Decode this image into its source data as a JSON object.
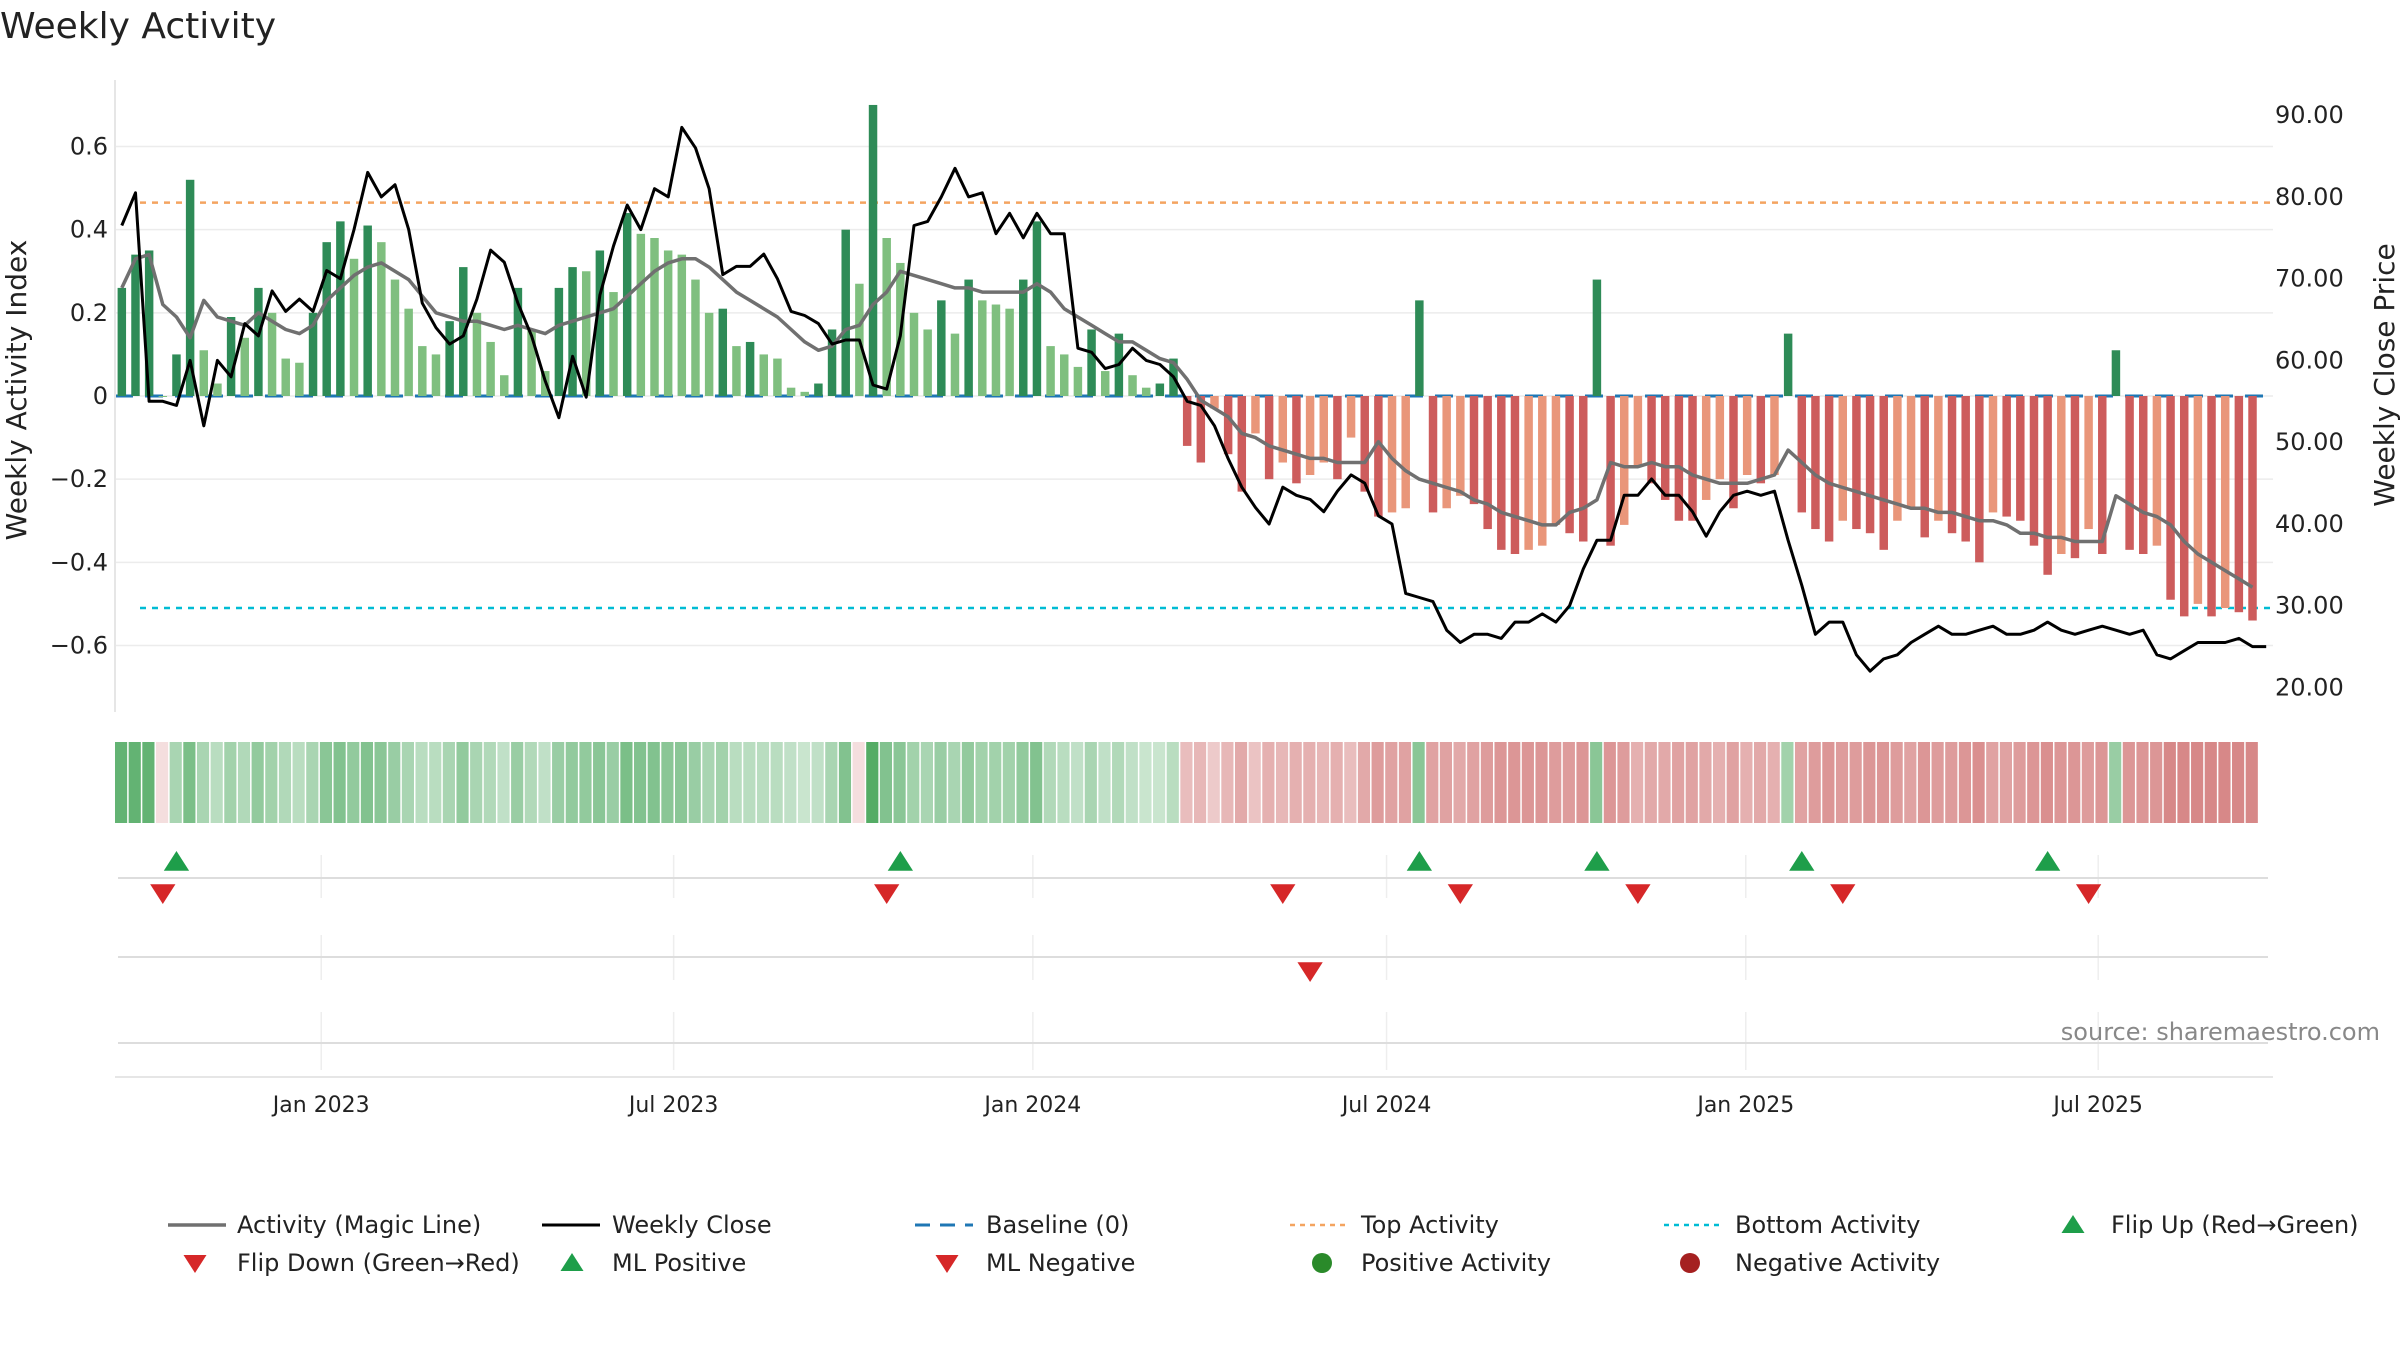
{
  "chart_data": {
    "type": "bar",
    "title": "Weekly Activity",
    "ylabel": "Weekly Activity Index",
    "y2label": "Weekly Close Price",
    "ylim": [
      -0.76,
      0.76
    ],
    "y2lim": [
      17.0,
      94.3
    ],
    "yticks": [
      0.6,
      0.4,
      0.2,
      0,
      -0.2,
      -0.4,
      -0.6
    ],
    "ytick_labels": [
      "0.6",
      "0.4",
      "0.2",
      "0",
      "−0.2",
      "−0.4",
      "−0.6"
    ],
    "y2ticks": [
      90,
      80,
      70,
      60,
      50,
      40,
      30,
      20
    ],
    "y2tick_labels": [
      "90.00",
      "80.00",
      "70.00",
      "60.00",
      "50.00",
      "40.00",
      "30.00",
      "20.00"
    ],
    "x_range_weeks": [
      0,
      157
    ],
    "xticks": [
      {
        "week": 14.6,
        "label": "Jan 2023"
      },
      {
        "week": 40.4,
        "label": "Jul 2023"
      },
      {
        "week": 66.7,
        "label": "Jan 2024"
      },
      {
        "week": 92.6,
        "label": "Jul 2024"
      },
      {
        "week": 118.9,
        "label": "Jan 2025"
      },
      {
        "week": 144.7,
        "label": "Jul 2025"
      }
    ],
    "top_activity": 0.465,
    "bottom_activity": -0.51,
    "activity": [
      0.26,
      0.34,
      0.35,
      0,
      0.1,
      0.52,
      0.11,
      0.03,
      0.19,
      0.14,
      0.26,
      0.2,
      0.09,
      0.08,
      0.2,
      0.37,
      0.42,
      0.33,
      0.41,
      0.37,
      0.28,
      0.21,
      0.12,
      0.1,
      0.18,
      0.31,
      0.2,
      0.13,
      0.05,
      0.26,
      0.16,
      0.06,
      0.26,
      0.31,
      0.3,
      0.35,
      0.25,
      0.44,
      0.39,
      0.38,
      0.35,
      0.34,
      0.28,
      0.2,
      0.21,
      0.12,
      0.13,
      0.1,
      0.09,
      0.02,
      0.01,
      0.03,
      0.16,
      0.4,
      0.27,
      0.7,
      0.38,
      0.32,
      0.2,
      0.16,
      0.23,
      0.15,
      0.28,
      0.23,
      0.22,
      0.21,
      0.28,
      0.42,
      0.12,
      0.1,
      0.07,
      0.16,
      0.06,
      0.15,
      0.05,
      0.02,
      0.03,
      0.09,
      -0.12,
      -0.16,
      -0.03,
      -0.14,
      -0.23,
      -0.09,
      -0.2,
      -0.16,
      -0.21,
      -0.19,
      -0.16,
      -0.2,
      -0.1,
      -0.23,
      -0.29,
      -0.28,
      -0.27,
      0.23,
      -0.28,
      -0.27,
      -0.24,
      -0.26,
      -0.32,
      -0.37,
      -0.38,
      -0.37,
      -0.36,
      -0.31,
      -0.33,
      -0.35,
      0.28,
      -0.36,
      -0.31,
      -0.17,
      -0.21,
      -0.25,
      -0.3,
      -0.3,
      -0.25,
      -0.2,
      -0.27,
      -0.19,
      -0.21,
      -0.19,
      0.15,
      -0.28,
      -0.32,
      -0.35,
      -0.3,
      -0.32,
      -0.33,
      -0.37,
      -0.3,
      -0.27,
      -0.34,
      -0.3,
      -0.33,
      -0.35,
      -0.4,
      -0.28,
      -0.29,
      -0.3,
      -0.36,
      -0.43,
      -0.38,
      -0.39,
      -0.32,
      -0.38,
      0.11,
      -0.37,
      -0.38,
      -0.36,
      -0.49,
      -0.53,
      -0.5,
      -0.53,
      -0.51,
      -0.52,
      -0.54
    ],
    "magic_line": [
      0.26,
      0.33,
      0.34,
      0.22,
      0.19,
      0.14,
      0.23,
      0.19,
      0.18,
      0.17,
      0.2,
      0.18,
      0.16,
      0.15,
      0.17,
      0.23,
      0.26,
      0.29,
      0.31,
      0.32,
      0.3,
      0.28,
      0.24,
      0.2,
      0.19,
      0.18,
      0.18,
      0.17,
      0.16,
      0.17,
      0.16,
      0.15,
      0.17,
      0.18,
      0.19,
      0.2,
      0.21,
      0.24,
      0.27,
      0.3,
      0.32,
      0.33,
      0.33,
      0.31,
      0.28,
      0.25,
      0.23,
      0.21,
      0.19,
      0.16,
      0.13,
      0.11,
      0.12,
      0.16,
      0.17,
      0.22,
      0.25,
      0.3,
      0.29,
      0.28,
      0.27,
      0.26,
      0.26,
      0.25,
      0.25,
      0.25,
      0.25,
      0.27,
      0.25,
      0.21,
      0.19,
      0.17,
      0.15,
      0.13,
      0.13,
      0.11,
      0.09,
      0.08,
      0.04,
      -0.01,
      -0.03,
      -0.05,
      -0.09,
      -0.1,
      -0.12,
      -0.13,
      -0.14,
      -0.15,
      -0.15,
      -0.16,
      -0.16,
      -0.16,
      -0.11,
      -0.15,
      -0.18,
      -0.2,
      -0.21,
      -0.22,
      -0.23,
      -0.25,
      -0.26,
      -0.28,
      -0.29,
      -0.3,
      -0.31,
      -0.31,
      -0.28,
      -0.27,
      -0.25,
      -0.16,
      -0.17,
      -0.17,
      -0.16,
      -0.17,
      -0.17,
      -0.19,
      -0.2,
      -0.21,
      -0.21,
      -0.21,
      -0.2,
      -0.19,
      -0.13,
      -0.16,
      -0.19,
      -0.21,
      -0.22,
      -0.23,
      -0.24,
      -0.25,
      -0.26,
      -0.27,
      -0.27,
      -0.28,
      -0.28,
      -0.29,
      -0.3,
      -0.3,
      -0.31,
      -0.33,
      -0.33,
      -0.34,
      -0.34,
      -0.35,
      -0.35,
      -0.35,
      -0.24,
      -0.26,
      -0.28,
      -0.29,
      -0.31,
      -0.35,
      -0.38,
      -0.4,
      -0.42,
      -0.44,
      -0.46
    ],
    "weekly_close": [
      76.5,
      80.5,
      55.0,
      55.0,
      54.5,
      60.0,
      52.0,
      60.0,
      58.0,
      64.5,
      63.0,
      68.5,
      66.0,
      67.5,
      66.0,
      71.0,
      70.0,
      76.0,
      83.0,
      80.0,
      81.5,
      76.0,
      67.0,
      64.0,
      62.0,
      63.0,
      67.5,
      73.5,
      72.0,
      67.0,
      63.0,
      57.5,
      53.0,
      60.5,
      55.5,
      68.0,
      74.0,
      79.0,
      76.0,
      81.0,
      80.0,
      88.5,
      86.0,
      81.0,
      70.5,
      71.5,
      71.5,
      73.0,
      70.0,
      66.0,
      65.5,
      64.5,
      62.0,
      62.5,
      62.5,
      57.0,
      56.5,
      63.0,
      76.5,
      77.0,
      80.0,
      83.5,
      80.0,
      80.5,
      75.5,
      78.0,
      75.0,
      78.0,
      75.5,
      75.5,
      61.5,
      61.0,
      59.0,
      59.5,
      61.5,
      60.0,
      59.5,
      58.0,
      55.0,
      54.5,
      52.0,
      48.0,
      44.5,
      42.0,
      40.0,
      44.5,
      43.5,
      43.0,
      41.5,
      44.0,
      46.0,
      45.0,
      41.0,
      40.0,
      31.5,
      31.0,
      30.5,
      27.0,
      25.5,
      26.5,
      26.5,
      26.0,
      28.0,
      28.0,
      29.0,
      28.0,
      30.0,
      34.5,
      38.0,
      38.0,
      43.5,
      43.5,
      45.5,
      43.5,
      43.5,
      41.5,
      38.5,
      41.5,
      43.5,
      44.0,
      43.5,
      44.0,
      38.0,
      32.5,
      26.5,
      28.0,
      28.0,
      24.0,
      22.0,
      23.5,
      24.0,
      25.5,
      26.5,
      27.5,
      26.5,
      26.5,
      27.0,
      27.5,
      26.5,
      26.5,
      27.0,
      28.0,
      27.0,
      26.5,
      27.0,
      27.5,
      27.0,
      26.5,
      27.0,
      24.0,
      23.5,
      24.5,
      25.5,
      25.5,
      25.5,
      26.0,
      25.0,
      25.0
    ],
    "strip_color_strength": [
      0.75,
      0.75,
      0.75,
      0.2,
      0.3,
      0.6,
      0.3,
      0.2,
      0.35,
      0.25,
      0.45,
      0.35,
      0.25,
      0.2,
      0.3,
      0.5,
      0.55,
      0.45,
      0.55,
      0.5,
      0.4,
      0.3,
      0.2,
      0.2,
      0.3,
      0.45,
      0.3,
      0.25,
      0.15,
      0.4,
      0.25,
      0.15,
      0.4,
      0.45,
      0.45,
      0.5,
      0.4,
      0.6,
      0.55,
      0.55,
      0.5,
      0.5,
      0.4,
      0.3,
      0.35,
      0.2,
      0.2,
      0.2,
      0.2,
      0.15,
      0.1,
      0.15,
      0.3,
      0.55,
      0.45,
      0.85,
      0.55,
      0.5,
      0.35,
      0.3,
      0.4,
      0.3,
      0.45,
      0.35,
      0.35,
      0.35,
      0.45,
      0.55,
      0.25,
      0.2,
      0.15,
      0.3,
      0.15,
      0.25,
      0.15,
      0.1,
      0.1,
      0.2,
      0.25,
      0.3,
      0.15,
      0.3,
      0.4,
      0.2,
      0.35,
      0.3,
      0.35,
      0.35,
      0.3,
      0.35,
      0.25,
      0.4,
      0.5,
      0.45,
      0.45,
      0.5,
      0.45,
      0.45,
      0.4,
      0.45,
      0.5,
      0.55,
      0.55,
      0.55,
      0.55,
      0.5,
      0.5,
      0.55,
      0.5,
      0.55,
      0.5,
      0.35,
      0.4,
      0.4,
      0.45,
      0.45,
      0.4,
      0.35,
      0.45,
      0.35,
      0.4,
      0.35,
      0.35,
      0.45,
      0.5,
      0.55,
      0.5,
      0.5,
      0.55,
      0.55,
      0.5,
      0.45,
      0.55,
      0.5,
      0.5,
      0.55,
      0.6,
      0.45,
      0.45,
      0.5,
      0.55,
      0.6,
      0.55,
      0.55,
      0.5,
      0.55,
      0.4,
      0.55,
      0.55,
      0.55,
      0.65,
      0.65,
      0.65,
      0.65,
      0.65,
      0.65,
      0.65
    ],
    "strip_pink_weeks": [
      3,
      54
    ],
    "flip_up_weeks": [
      4,
      57,
      95,
      108,
      123,
      141
    ],
    "flip_down_weeks": [
      3,
      56,
      85,
      98,
      111,
      126,
      144
    ],
    "ml_negative_weeks": [
      87
    ],
    "legend": [
      "Activity (Magic Line)",
      "Weekly Close",
      "Baseline (0)",
      "Top Activity",
      "Bottom Activity",
      "Flip Up (Red→Green)",
      "Flip Down (Green→Red)",
      "ML Positive",
      "ML Negative",
      "Positive Activity",
      "Negative Activity"
    ],
    "source": "source: sharemaestro.com",
    "colors": {
      "pos_dark": "#2e8b57",
      "pos_light": "#7fbf7f",
      "neg_dark": "#cd5c5c",
      "neg_light": "#e9967a",
      "magic_line": "#707070",
      "close_line": "#000000",
      "baseline": "#1f77b4",
      "top_line": "#f4a460",
      "bottom_line": "#00bcd4",
      "up_marker": "#1e9e4a",
      "down_marker": "#d62728",
      "pos_dot": "#2a8a2a",
      "neg_dot": "#a52020",
      "strip_green_rgb": [
        60,
        160,
        80
      ],
      "strip_red_rgb": [
        200,
        90,
        90
      ]
    }
  }
}
